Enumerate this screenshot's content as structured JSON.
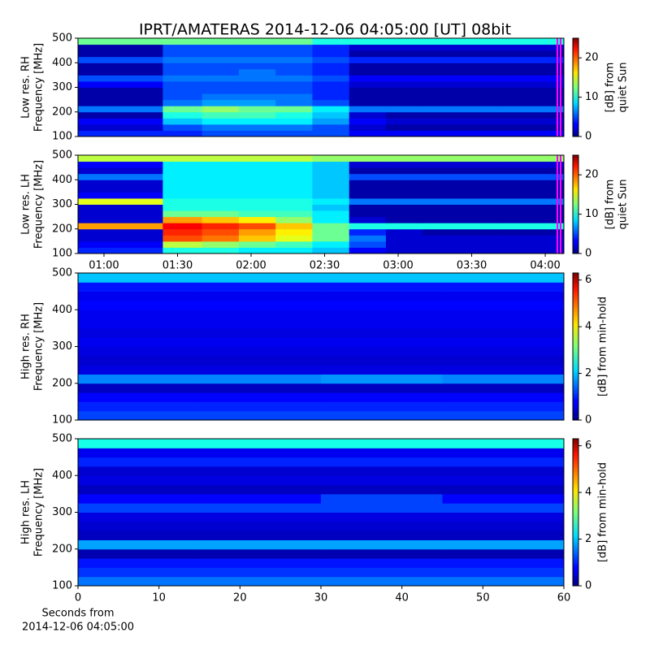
{
  "chart_data": [
    {
      "type": "heatmap",
      "title": "IPRT/AMATERAS 2014-12-06 04:05:00 [UT]   08bit",
      "ylabel": [
        "Low res. RH",
        "Frequency [MHz]"
      ],
      "colorbar_label": [
        "[dB] from",
        "quiet Sun"
      ],
      "ylim": [
        100,
        500
      ],
      "yticks": [
        100,
        200,
        300,
        400,
        500
      ],
      "xlim": [
        49.4,
        247.6
      ],
      "clim": [
        0,
        25
      ],
      "cticks": [
        0,
        10,
        20
      ],
      "colormap": "jet",
      "xbins": [
        49.4,
        84,
        100,
        115,
        130,
        145,
        160,
        175,
        190,
        220,
        247.6
      ],
      "ybins": [
        100,
        125,
        150,
        175,
        200,
        225,
        250,
        275,
        300,
        325,
        350,
        375,
        400,
        425,
        450,
        475,
        500
      ],
      "z": [
        [
          4,
          4,
          5,
          5,
          5,
          5,
          3,
          3,
          3,
          3
        ],
        [
          2,
          5,
          6,
          6,
          6,
          5,
          2,
          1,
          1,
          1
        ],
        [
          3,
          8,
          9,
          9,
          9,
          7,
          3,
          2,
          2,
          2
        ],
        [
          1,
          10,
          11,
          11,
          10,
          8,
          2,
          1,
          1,
          1
        ],
        [
          6,
          12,
          13,
          12,
          12,
          9,
          6,
          6,
          6,
          6
        ],
        [
          1,
          6,
          7,
          7,
          6,
          5,
          1,
          1,
          1,
          1
        ],
        [
          1,
          5,
          6,
          6,
          6,
          4,
          1,
          1,
          1,
          1
        ],
        [
          1,
          5,
          5,
          5,
          5,
          4,
          1,
          1,
          1,
          1
        ],
        [
          3,
          5,
          5,
          5,
          5,
          4,
          2,
          2,
          2,
          2
        ],
        [
          5,
          6,
          6,
          6,
          6,
          5,
          3,
          3,
          3,
          3
        ],
        [
          1,
          5,
          5,
          6,
          5,
          4,
          1,
          1,
          1,
          1
        ],
        [
          1,
          5,
          5,
          5,
          5,
          4,
          1,
          1,
          1,
          1
        ],
        [
          5,
          6,
          6,
          6,
          6,
          5,
          4,
          4,
          4,
          4
        ],
        [
          1,
          5,
          5,
          5,
          5,
          4,
          1,
          1,
          1,
          1
        ],
        [
          1,
          5,
          5,
          5,
          5,
          4,
          2,
          2,
          2,
          2
        ],
        [
          12,
          12,
          12,
          12,
          12,
          10,
          10,
          10,
          10,
          10
        ]
      ]
    },
    {
      "type": "heatmap",
      "ylabel": [
        "Low res. LH",
        "Frequency [MHz]"
      ],
      "colorbar_label": [
        "[dB] from",
        "quiet Sun"
      ],
      "ylim": [
        100,
        500
      ],
      "yticks": [
        100,
        200,
        300,
        400,
        500
      ],
      "xlim": [
        49.4,
        247.6
      ],
      "xticks": [
        {
          "value": 60,
          "label": "01:00"
        },
        {
          "value": 90,
          "label": "01:30"
        },
        {
          "value": 120,
          "label": "02:00"
        },
        {
          "value": 150,
          "label": "02:30"
        },
        {
          "value": 180,
          "label": "03:00"
        },
        {
          "value": 210,
          "label": "03:30"
        },
        {
          "value": 240,
          "label": "04:00"
        }
      ],
      "clim": [
        0,
        25
      ],
      "cticks": [
        0,
        10,
        20
      ],
      "colormap": "jet",
      "xbins": [
        49.4,
        84,
        100,
        115,
        130,
        145,
        160,
        175,
        190,
        220,
        247.6
      ],
      "ybins": [
        100,
        125,
        150,
        175,
        200,
        225,
        250,
        275,
        300,
        325,
        350,
        375,
        400,
        425,
        450,
        475,
        500
      ],
      "z": [
        [
          4,
          10,
          10,
          9,
          9,
          8,
          3,
          2,
          2,
          2
        ],
        [
          3,
          14,
          13,
          12,
          11,
          9,
          5,
          2,
          2,
          2
        ],
        [
          2,
          20,
          19,
          17,
          15,
          12,
          6,
          2,
          2,
          2
        ],
        [
          2,
          21,
          20,
          18,
          16,
          12,
          4,
          2,
          1,
          1
        ],
        [
          18,
          22,
          21,
          20,
          17,
          12,
          10,
          10,
          10,
          10
        ],
        [
          2,
          18,
          17,
          16,
          13,
          9,
          2,
          1,
          1,
          1
        ],
        [
          2,
          12,
          12,
          11,
          11,
          9,
          1,
          1,
          1,
          1
        ],
        [
          2,
          10,
          10,
          10,
          10,
          8,
          1,
          1,
          1,
          1
        ],
        [
          15,
          10,
          10,
          10,
          10,
          9,
          6,
          6,
          6,
          6
        ],
        [
          3,
          9,
          9,
          9,
          9,
          8,
          1,
          1,
          1,
          1
        ],
        [
          2,
          9,
          9,
          9,
          9,
          8,
          1,
          1,
          1,
          1
        ],
        [
          2,
          9,
          9,
          9,
          9,
          8,
          1,
          1,
          1,
          1
        ],
        [
          6,
          9,
          9,
          9,
          9,
          8,
          5,
          5,
          5,
          5
        ],
        [
          2,
          9,
          9,
          9,
          9,
          8,
          1,
          1,
          1,
          1
        ],
        [
          3,
          9,
          9,
          9,
          9,
          8,
          2,
          2,
          2,
          2
        ],
        [
          14,
          14,
          14,
          14,
          14,
          13,
          13,
          13,
          13,
          13
        ]
      ]
    },
    {
      "type": "heatmap",
      "ylabel": [
        "High res. RH",
        "Frequency [MHz]"
      ],
      "colorbar_label": [
        "[dB] from min-hold"
      ],
      "ylim": [
        100,
        500
      ],
      "yticks": [
        100,
        200,
        300,
        400,
        500
      ],
      "xlim": [
        0,
        60
      ],
      "clim": [
        0,
        6.3
      ],
      "cticks": [
        0,
        2,
        4,
        6
      ],
      "colormap": "jet",
      "xbins": [
        0,
        15,
        30,
        45,
        60
      ],
      "ybins": [
        100,
        125,
        150,
        175,
        200,
        225,
        250,
        275,
        300,
        325,
        350,
        375,
        400,
        425,
        450,
        475,
        500
      ],
      "z": [
        [
          1.2,
          1.2,
          1.2,
          1.2
        ],
        [
          1.0,
          1.0,
          1.0,
          1.0
        ],
        [
          0.8,
          0.8,
          0.8,
          0.8
        ],
        [
          0.4,
          0.4,
          0.4,
          0.4
        ],
        [
          1.6,
          1.6,
          1.7,
          1.6
        ],
        [
          0.6,
          0.6,
          0.6,
          0.6
        ],
        [
          0.5,
          0.5,
          0.5,
          0.5
        ],
        [
          0.6,
          0.6,
          0.6,
          0.6
        ],
        [
          0.7,
          0.7,
          0.7,
          0.7
        ],
        [
          0.6,
          0.6,
          0.6,
          0.6
        ],
        [
          0.7,
          0.7,
          0.7,
          0.7
        ],
        [
          0.7,
          0.7,
          0.7,
          0.7
        ],
        [
          0.8,
          0.8,
          0.8,
          0.8
        ],
        [
          0.7,
          0.7,
          0.7,
          0.7
        ],
        [
          0.9,
          0.9,
          0.9,
          0.9
        ],
        [
          2.0,
          2.0,
          2.0,
          2.0
        ]
      ]
    },
    {
      "type": "heatmap",
      "ylabel": [
        "High res. LH",
        "Frequency [MHz]"
      ],
      "colorbar_label": [
        "[dB] from min-hold"
      ],
      "xlabel": [
        "Seconds from",
        "2014-12-06 04:05:00"
      ],
      "ylim": [
        100,
        500
      ],
      "yticks": [
        100,
        200,
        300,
        400,
        500
      ],
      "xlim": [
        0,
        60
      ],
      "xticks": [
        0,
        10,
        20,
        30,
        40,
        50,
        60
      ],
      "clim": [
        0,
        6.3
      ],
      "cticks": [
        0,
        2,
        4,
        6
      ],
      "colormap": "jet",
      "xbins": [
        0,
        15,
        30,
        45,
        60
      ],
      "ybins": [
        100,
        125,
        150,
        175,
        200,
        225,
        250,
        275,
        300,
        325,
        350,
        375,
        400,
        425,
        450,
        475,
        500
      ],
      "z": [
        [
          1.5,
          1.5,
          1.5,
          1.5
        ],
        [
          1.1,
          1.1,
          1.1,
          1.1
        ],
        [
          0.9,
          0.9,
          0.9,
          0.9
        ],
        [
          0.3,
          0.3,
          0.3,
          0.3
        ],
        [
          1.8,
          1.8,
          1.8,
          1.8
        ],
        [
          0.4,
          0.4,
          0.4,
          0.4
        ],
        [
          0.5,
          0.5,
          0.5,
          0.5
        ],
        [
          0.6,
          0.6,
          0.6,
          0.6
        ],
        [
          1.2,
          1.2,
          1.2,
          1.2
        ],
        [
          0.8,
          0.8,
          1.2,
          0.8
        ],
        [
          0.4,
          0.4,
          0.4,
          0.4
        ],
        [
          0.6,
          0.6,
          0.6,
          0.6
        ],
        [
          0.5,
          0.5,
          0.5,
          0.5
        ],
        [
          1.0,
          1.0,
          1.0,
          1.0
        ],
        [
          0.7,
          0.7,
          0.7,
          0.7
        ],
        [
          2.5,
          2.5,
          2.5,
          2.5
        ]
      ]
    }
  ]
}
